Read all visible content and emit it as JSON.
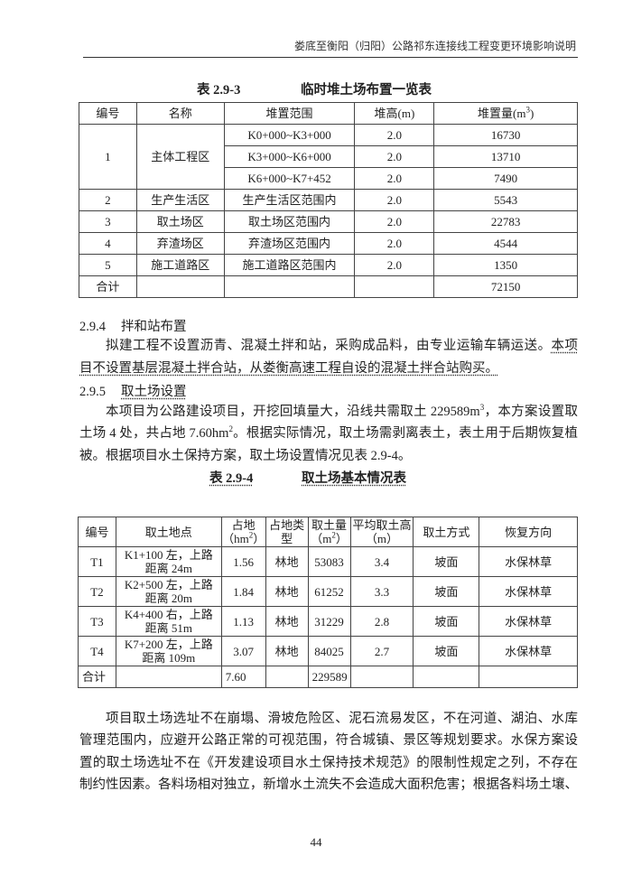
{
  "header": {
    "title": "娄底至衡阳（归阳）公路祁东连接线工程变更环境影响说明"
  },
  "table1": {
    "number": "表 2.9-3",
    "title": "临时堆土场布置一览表",
    "headers": [
      "编号",
      "名称",
      "堆置范围",
      "堆高(m)",
      "堆置量(m",
      "3",
      ")"
    ],
    "group1": {
      "id": "1",
      "name": "主体工程区",
      "rows": [
        {
          "range": "K0+000~K3+000",
          "height": "2.0",
          "volume": "16730"
        },
        {
          "range": "K3+000~K6+000",
          "height": "2.0",
          "volume": "13710"
        },
        {
          "range": "K6+000~K7+452",
          "height": "2.0",
          "volume": "7490"
        }
      ]
    },
    "rows": [
      {
        "id": "2",
        "name": "生产生活区",
        "range": "生产生活区范围内",
        "height": "2.0",
        "volume": "5543"
      },
      {
        "id": "3",
        "name": "取土场区",
        "range": "取土场区范围内",
        "height": "2.0",
        "volume": "22783"
      },
      {
        "id": "4",
        "name": "弃渣场区",
        "range": "弃渣场区范围内",
        "height": "2.0",
        "volume": "4544"
      },
      {
        "id": "5",
        "name": "施工道路区",
        "range": "施工道路区范围内",
        "height": "2.0",
        "volume": "1350"
      }
    ],
    "total": {
      "label": "合计",
      "volume": "72150"
    }
  },
  "sec294": {
    "num": "2.9.4",
    "title": "拌和站布置",
    "line1a": "拟建工程不设置沥青、混凝土拌和站，采购成品料，由专业运输车辆运送。",
    "line1b": "本项",
    "line2": "目不设置基层混凝土拌合站，从娄衡高速工程自设的混凝土拌合站购买。"
  },
  "sec295": {
    "num": "2.9.5",
    "title": "取土场设置",
    "line1a": "本项目为公路建设项目，开挖回填量大，沿线共需取土 229589m",
    "line1sup": "3",
    "line1b": "，本方案设置取",
    "line2a": "土场 4 处，共占地 7.60hm",
    "line2sup": "2",
    "line2b": "。根据实际情况，取土场需剥离表土，表土用于后期恢复植",
    "line3": "被。根据项目水土保持方案，取土场设置情况见表 2.9-4。"
  },
  "table2": {
    "number": "表 2.9-4",
    "title": "取土场基本情况表",
    "headers": {
      "id": "编号",
      "loc": "取土地点",
      "area": "占地",
      "area_unit": "（hm",
      "area_sup": "2",
      "area_close": "）",
      "type": "占地类型",
      "vol": "取土量",
      "vol_unit": "（m",
      "vol_sup": "2",
      "vol_close": "）",
      "avg": "平均取土高",
      "avg_unit": "（m）",
      "method": "取土方式",
      "restore": "恢复方向"
    },
    "rows": [
      {
        "id": "T1",
        "loc1": "K1+100 左，上路",
        "loc2": "距离 24m",
        "area": "1.56",
        "type": "林地",
        "vol": "53083",
        "avg": "3.4",
        "method": "坡面",
        "restore": "水保林草"
      },
      {
        "id": "T2",
        "loc1": "K2+500 左，上路",
        "loc2": "距离 20m",
        "area": "1.84",
        "type": "林地",
        "vol": "61252",
        "avg": "3.3",
        "method": "坡面",
        "restore": "水保林草"
      },
      {
        "id": "T3",
        "loc1": "K4+400 右，上路",
        "loc2": "距离 51m",
        "area": "1.13",
        "type": "林地",
        "vol": "31229",
        "avg": "2.8",
        "method": "坡面",
        "restore": "水保林草"
      },
      {
        "id": "T4",
        "loc1": "K7+200 左，上路",
        "loc2": "距离 109m",
        "area": "3.07",
        "type": "林地",
        "vol": "84025",
        "avg": "2.7",
        "method": "坡面",
        "restore": "水保林草"
      }
    ],
    "total": {
      "label": "合计",
      "area": "7.60",
      "vol": "229589"
    }
  },
  "para": {
    "lines": [
      "项目取土场选址不在崩塌、滑坡危险区、泥石流易发区，不在河道、湖泊、水库",
      "管理范围内，应避开公路正常的可视范围，符合城镇、景区等规划要求。水保方案设",
      "置的取土场选址不在《开发建设项目水土保持技术规范》的限制性规定之列，不存在",
      "制约性因素。各料场相对独立，新增水土流失不会造成大面积危害；根据各料场土壤、"
    ]
  },
  "page_number": "44"
}
